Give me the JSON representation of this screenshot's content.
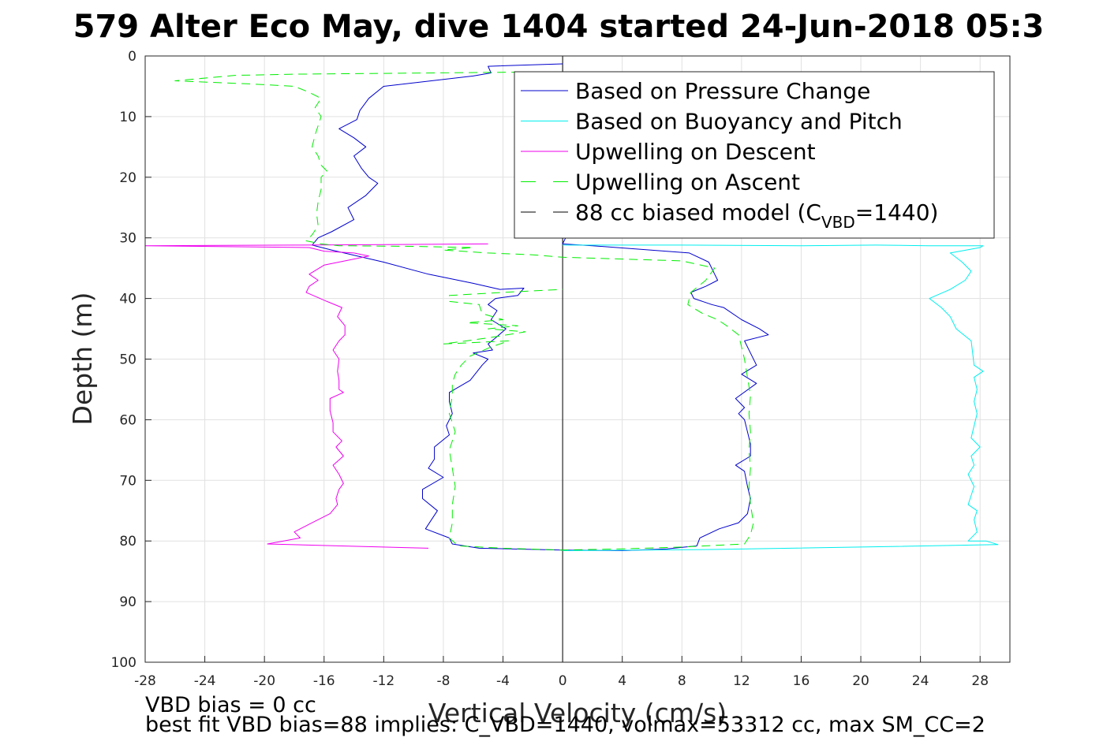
{
  "chart_data": {
    "type": "line",
    "title": "579 Alter Eco May, dive 1404 started 24-Jun-2018 05:3",
    "xlabel": "Vertical Velocity (cm/s)",
    "ylabel": "Depth (m)",
    "xlim": [
      -28,
      30
    ],
    "ylim": [
      0,
      100
    ],
    "y_reversed": true,
    "grid": true,
    "legend_position": "top-right",
    "xticks": [
      -28,
      -24,
      -20,
      -16,
      -12,
      -8,
      -4,
      0,
      4,
      8,
      12,
      16,
      20,
      24,
      28
    ],
    "yticks": [
      0,
      10,
      20,
      30,
      40,
      50,
      60,
      70,
      80,
      90,
      100
    ],
    "zero_line": {
      "x": 0,
      "color": "#000000"
    },
    "legend": {
      "items": [
        {
          "series": 0,
          "label": "Based on Pressure Change"
        },
        {
          "series": 1,
          "label": "Based on Buoyancy and Pitch"
        },
        {
          "series": 2,
          "label": "Upwelling on Descent"
        },
        {
          "series": 3,
          "label": "Upwelling on Ascent"
        },
        {
          "series": 4,
          "label_main": "88 cc biased model (C",
          "label_sub": "VBD",
          "label_end": "=1440)"
        }
      ]
    },
    "series": [
      {
        "name": "Based on Pressure Change",
        "color": "#0000cc",
        "dash": "solid",
        "points": [
          [
            0,
            1.3
          ],
          [
            -5,
            1.7
          ],
          [
            -4.8,
            2.8
          ],
          [
            -6,
            3.3
          ],
          [
            -12,
            5
          ],
          [
            -13,
            7
          ],
          [
            -13.6,
            9
          ],
          [
            -13.8,
            10.5
          ],
          [
            -15,
            12
          ],
          [
            -14,
            13.5
          ],
          [
            -13.2,
            15
          ],
          [
            -14,
            16.5
          ],
          [
            -13.5,
            18.5
          ],
          [
            -13,
            20
          ],
          [
            -12.4,
            21
          ],
          [
            -13.2,
            23
          ],
          [
            -14.4,
            25
          ],
          [
            -14,
            27
          ],
          [
            -15.5,
            29
          ],
          [
            -16.4,
            30
          ],
          [
            -16.8,
            31.2
          ],
          [
            -15.5,
            32
          ],
          [
            -12,
            34
          ],
          [
            -9,
            36
          ],
          [
            -6,
            37.5
          ],
          [
            -4.2,
            38.5
          ],
          [
            -2.6,
            38.3
          ],
          [
            -3,
            39.5
          ],
          [
            -4.5,
            40
          ],
          [
            -5,
            41
          ],
          [
            -4.4,
            42
          ],
          [
            -4.8,
            43.5
          ],
          [
            -3.8,
            45
          ],
          [
            -4.5,
            46.5
          ],
          [
            -5,
            47.5
          ],
          [
            -4.7,
            48.5
          ],
          [
            -6,
            49
          ],
          [
            -5,
            50
          ],
          [
            -5.4,
            51
          ],
          [
            -6.2,
            53.5
          ],
          [
            -7.6,
            55.5
          ],
          [
            -7.6,
            57
          ],
          [
            -7.4,
            59
          ],
          [
            -7.8,
            61
          ],
          [
            -7.6,
            62.5
          ],
          [
            -8.6,
            64.5
          ],
          [
            -8.6,
            66.5
          ],
          [
            -9,
            68
          ],
          [
            -8,
            69.5
          ],
          [
            -9.4,
            71.5
          ],
          [
            -9.4,
            73
          ],
          [
            -8.4,
            75
          ],
          [
            -8.8,
            76.5
          ],
          [
            -9.2,
            78
          ],
          [
            -7.6,
            79.5
          ],
          [
            -7.4,
            80.5
          ],
          [
            -5.6,
            81.2
          ],
          [
            0,
            81.5
          ],
          [
            4,
            81.6
          ],
          [
            7,
            81.3
          ],
          [
            9,
            80.8
          ],
          [
            9.2,
            79.5
          ],
          [
            10.5,
            78
          ],
          [
            11.8,
            77
          ],
          [
            12.4,
            75.5
          ],
          [
            12.6,
            73
          ],
          [
            12.4,
            71
          ],
          [
            12.2,
            68.5
          ],
          [
            11.6,
            67.5
          ],
          [
            12.6,
            66
          ],
          [
            12.6,
            64
          ],
          [
            12.4,
            62
          ],
          [
            12.2,
            60
          ],
          [
            11.8,
            59
          ],
          [
            12.2,
            58
          ],
          [
            11.6,
            56.5
          ],
          [
            13,
            54
          ],
          [
            12,
            52.5
          ],
          [
            13,
            51
          ],
          [
            12.6,
            49
          ],
          [
            12.2,
            47
          ],
          [
            13.8,
            46
          ],
          [
            13.2,
            45
          ],
          [
            12,
            43.5
          ],
          [
            10.8,
            41.5
          ],
          [
            10,
            41
          ],
          [
            8.8,
            40
          ],
          [
            8.6,
            39
          ],
          [
            9.6,
            38
          ],
          [
            10.4,
            37
          ],
          [
            10.2,
            36
          ],
          [
            9.8,
            34
          ],
          [
            8.5,
            32.5
          ],
          [
            2,
            31.3
          ],
          [
            0,
            31
          ],
          [
            0.2,
            30
          ]
        ]
      },
      {
        "name": "Based on Buoyancy and Pitch",
        "color": "#00eeee",
        "dash": "solid",
        "points": [
          [
            0,
            31.2
          ],
          [
            8,
            31.2
          ],
          [
            16,
            31.3
          ],
          [
            21,
            31.2
          ],
          [
            24.5,
            31.3
          ],
          [
            28.2,
            31.3
          ],
          [
            28,
            31.6
          ],
          [
            26,
            32.5
          ],
          [
            26.8,
            34
          ],
          [
            27.4,
            35.5
          ],
          [
            27,
            37
          ],
          [
            26,
            38.5
          ],
          [
            24.6,
            40
          ],
          [
            25.4,
            41.5
          ],
          [
            26,
            43
          ],
          [
            26.4,
            45
          ],
          [
            27.4,
            47
          ],
          [
            27.5,
            49
          ],
          [
            27.6,
            51
          ],
          [
            28.2,
            52
          ],
          [
            27.6,
            53
          ],
          [
            27.8,
            55
          ],
          [
            27.6,
            57
          ],
          [
            27.8,
            59
          ],
          [
            27.6,
            61
          ],
          [
            27.4,
            63
          ],
          [
            28,
            64.5
          ],
          [
            27.4,
            66
          ],
          [
            27.6,
            67.5
          ],
          [
            27.2,
            69
          ],
          [
            27.6,
            71
          ],
          [
            27.4,
            72.5
          ],
          [
            27.2,
            74
          ],
          [
            27.8,
            75
          ],
          [
            27.6,
            76.5
          ],
          [
            27.8,
            78.5
          ],
          [
            27.2,
            80
          ],
          [
            28.4,
            80
          ],
          [
            29.2,
            80.6
          ],
          [
            20,
            81
          ],
          [
            10,
            81.4
          ],
          [
            0,
            81.6
          ]
        ]
      },
      {
        "name": "Upwelling on Descent",
        "color": "#ee00ee",
        "dash": "solid",
        "points": [
          [
            -5,
            31
          ],
          [
            -12,
            31.1
          ],
          [
            -18,
            31.2
          ],
          [
            -28,
            31.3
          ],
          [
            -17,
            31.6
          ],
          [
            -16,
            32.2
          ],
          [
            -14,
            32.5
          ],
          [
            -13,
            33
          ],
          [
            -14,
            33.5
          ],
          [
            -16,
            34.5
          ],
          [
            -17,
            36
          ],
          [
            -16.4,
            37
          ],
          [
            -17,
            38
          ],
          [
            -17.2,
            39
          ],
          [
            -15.8,
            40.5
          ],
          [
            -14.8,
            41.5
          ],
          [
            -15.1,
            43
          ],
          [
            -14.6,
            44.5
          ],
          [
            -14.6,
            46
          ],
          [
            -15,
            47
          ],
          [
            -15.4,
            48.5
          ],
          [
            -15,
            50
          ],
          [
            -15.1,
            52
          ],
          [
            -15,
            53.5
          ],
          [
            -15,
            55
          ],
          [
            -14.7,
            55.5
          ],
          [
            -15.6,
            56.5
          ],
          [
            -15.6,
            58.5
          ],
          [
            -15.4,
            60.5
          ],
          [
            -15.4,
            62
          ],
          [
            -14.8,
            63.5
          ],
          [
            -15.2,
            64.5
          ],
          [
            -14.7,
            66
          ],
          [
            -15.4,
            67.5
          ],
          [
            -15,
            69
          ],
          [
            -14.7,
            70.5
          ],
          [
            -15,
            71.5
          ],
          [
            -15.2,
            73
          ],
          [
            -15.1,
            74
          ],
          [
            -15.6,
            75.5
          ],
          [
            -16.8,
            77
          ],
          [
            -18,
            78.5
          ],
          [
            -17.6,
            79.5
          ],
          [
            -19.8,
            80.5
          ],
          [
            -9,
            81.2
          ]
        ]
      },
      {
        "name": "Upwelling on Ascent",
        "color": "#00ee00",
        "dash": "dashed",
        "points": [
          [
            0,
            2.6
          ],
          [
            -18,
            3
          ],
          [
            -22,
            3.2
          ],
          [
            -26,
            4.1
          ],
          [
            -21,
            4.6
          ],
          [
            -18,
            5
          ],
          [
            -17,
            6
          ],
          [
            -16.2,
            7
          ],
          [
            -16.6,
            8.5
          ],
          [
            -16.2,
            10
          ],
          [
            -16.4,
            11.5
          ],
          [
            -16.6,
            13
          ],
          [
            -16.8,
            15
          ],
          [
            -16.4,
            16.5
          ],
          [
            -16.2,
            18
          ],
          [
            -15.8,
            19
          ],
          [
            -16.2,
            20
          ],
          [
            -16.2,
            22
          ],
          [
            -16.4,
            24
          ],
          [
            -16.5,
            26
          ],
          [
            -16.4,
            28
          ],
          [
            -16.8,
            29.5
          ],
          [
            -17.2,
            30.5
          ],
          [
            -16.2,
            31
          ],
          [
            -15,
            31.3
          ],
          [
            -10,
            31.4
          ],
          [
            -6,
            31.6
          ],
          [
            -8,
            32
          ],
          [
            -5,
            32.5
          ],
          [
            -2,
            32.8
          ],
          [
            0,
            33.2
          ],
          [
            4,
            33.5
          ],
          [
            8,
            33.8
          ],
          [
            10.2,
            35
          ],
          [
            9.6,
            37
          ],
          [
            8.6,
            39
          ],
          [
            8.4,
            41
          ],
          [
            9.4,
            42.5
          ],
          [
            10.4,
            43.5
          ],
          [
            11,
            44.5
          ],
          [
            11.8,
            46
          ],
          [
            12,
            48
          ],
          [
            12.2,
            50
          ],
          [
            12.4,
            53
          ],
          [
            12.6,
            56
          ],
          [
            12.5,
            59
          ],
          [
            12.6,
            62
          ],
          [
            12.5,
            65
          ],
          [
            12.6,
            68
          ],
          [
            12.5,
            71
          ],
          [
            12.6,
            74
          ],
          [
            12.8,
            77
          ],
          [
            12.6,
            79
          ],
          [
            12.2,
            80.5
          ],
          [
            8,
            81
          ],
          [
            4,
            81.3
          ],
          [
            0,
            81.5
          ],
          [
            -4,
            81.2
          ],
          [
            -7,
            80.8
          ],
          [
            -7.6,
            79.5
          ],
          [
            -7.4,
            77
          ],
          [
            -7.4,
            74
          ],
          [
            -7.2,
            71
          ],
          [
            -7.4,
            68
          ],
          [
            -7.6,
            65
          ],
          [
            -7.2,
            62
          ],
          [
            -7.6,
            59
          ],
          [
            -7.4,
            56
          ],
          [
            -7.4,
            54
          ],
          [
            -7.2,
            52.5
          ],
          [
            -6.8,
            51
          ],
          [
            -6.2,
            49.5
          ],
          [
            -4.8,
            48
          ],
          [
            -3.6,
            47
          ],
          [
            -8,
            47.5
          ],
          [
            -5,
            46.5
          ],
          [
            -2.5,
            45.5
          ],
          [
            -5,
            45
          ],
          [
            -3,
            44.5
          ],
          [
            -6.4,
            44
          ],
          [
            -4,
            43.5
          ],
          [
            -5.4,
            42.5
          ],
          [
            -5.6,
            41
          ],
          [
            -7.6,
            40.5
          ],
          [
            -7.6,
            39.5
          ],
          [
            -4,
            39
          ],
          [
            0,
            38.5
          ]
        ]
      },
      {
        "name": "88 cc biased model",
        "color": "#000000",
        "dash": "dashed",
        "points": []
      }
    ]
  },
  "annotations": {
    "bias_line": "VBD bias = 0 cc",
    "fit_line": "best fit VBD bias=88 implies: C_VBD=1440, volmax=53312 cc, max SM_CC=2"
  }
}
